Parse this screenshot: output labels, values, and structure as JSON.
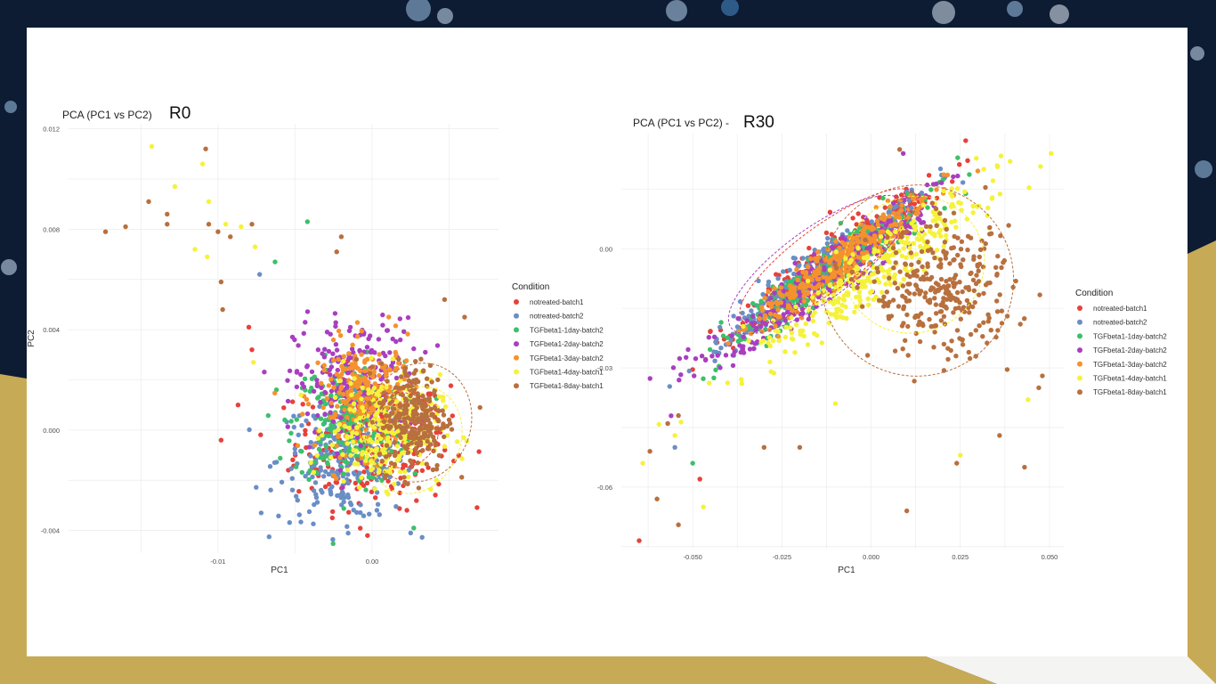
{
  "slide": {
    "background_colors": {
      "dark": "#0d1b33",
      "gold": "#c7aa55",
      "white": "#ffffff"
    }
  },
  "legend": {
    "title": "Condition",
    "items": [
      {
        "label": "notreated-batch1",
        "color": "#e8403a"
      },
      {
        "label": "notreated-batch2",
        "color": "#6a8ec6"
      },
      {
        "label": "TGFbeta1-1day-batch2",
        "color": "#3cc06a"
      },
      {
        "label": "TGFbeta1-2day-batch2",
        "color": "#a83fc0"
      },
      {
        "label": "TGFbeta1-3day-batch2",
        "color": "#f5922e"
      },
      {
        "label": "TGFbeta1-4day-batch1",
        "color": "#f5f23a"
      },
      {
        "label": "TGFbeta1-8day-batch1",
        "color": "#b8703e"
      }
    ]
  },
  "chart_data": [
    {
      "type": "scatter",
      "title": "PCA (PC1 vs PC2)",
      "label": "R0",
      "xlabel": "PC1",
      "ylabel": "PC2",
      "xlim": [
        -0.0197,
        0.0082
      ],
      "ylim": [
        -0.0049,
        0.0122
      ],
      "xticks": [
        -0.01,
        0.0
      ],
      "xtick_labels": [
        "-0.01",
        "0.00"
      ],
      "yticks": [
        -0.004,
        0.0,
        0.004,
        0.008,
        0.012
      ],
      "ytick_labels": [
        "-0.004",
        "0.000",
        "0.004",
        "0.008",
        "0.012"
      ],
      "grid": true,
      "legend_position": "right",
      "clusters": [
        {
          "series": "notreated-batch1",
          "cx": 0.0,
          "cy": -0.0005,
          "sx": 0.0025,
          "sy": 0.0013
        },
        {
          "series": "notreated-batch2",
          "cx": -0.0017,
          "cy": -0.0012,
          "sx": 0.0022,
          "sy": 0.0012
        },
        {
          "series": "TGFbeta1-1day-batch2",
          "cx": -0.0015,
          "cy": 0.0003,
          "sx": 0.0018,
          "sy": 0.0012
        },
        {
          "series": "TGFbeta1-2day-batch2",
          "cx": -0.001,
          "cy": 0.0018,
          "sx": 0.002,
          "sy": 0.0013
        },
        {
          "series": "TGFbeta1-3day-batch2",
          "cx": -0.0003,
          "cy": 0.0013,
          "sx": 0.0016,
          "sy": 0.0011
        },
        {
          "series": "TGFbeta1-4day-batch1",
          "cx": 0.0008,
          "cy": 0.0,
          "sx": 0.0018,
          "sy": 0.0011
        },
        {
          "series": "TGFbeta1-8day-batch1",
          "cx": 0.0027,
          "cy": 0.0005,
          "sx": 0.0011,
          "sy": 0.0011
        }
      ],
      "outliers": [
        {
          "series": "TGFbeta1-8day-batch1",
          "x": -0.0173,
          "y": 0.0079
        },
        {
          "series": "TGFbeta1-8day-batch1",
          "x": -0.016,
          "y": 0.0081
        },
        {
          "series": "TGFbeta1-4day-batch1",
          "x": -0.0143,
          "y": 0.0113
        },
        {
          "series": "TGFbeta1-8day-batch1",
          "x": -0.0145,
          "y": 0.0091
        },
        {
          "series": "TGFbeta1-8day-batch1",
          "x": -0.0133,
          "y": 0.0086
        },
        {
          "series": "TGFbeta1-8day-batch1",
          "x": -0.0133,
          "y": 0.0082
        },
        {
          "series": "TGFbeta1-4day-batch1",
          "x": -0.0128,
          "y": 0.0097
        },
        {
          "series": "TGFbeta1-8day-batch1",
          "x": -0.0108,
          "y": 0.0112
        },
        {
          "series": "TGFbeta1-4day-batch1",
          "x": -0.011,
          "y": 0.0106
        },
        {
          "series": "TGFbeta1-4day-batch1",
          "x": -0.0106,
          "y": 0.0091
        },
        {
          "series": "TGFbeta1-8day-batch1",
          "x": -0.0106,
          "y": 0.0082
        },
        {
          "series": "TGFbeta1-4day-batch1",
          "x": -0.0115,
          "y": 0.0072
        },
        {
          "series": "TGFbeta1-4day-batch1",
          "x": -0.0107,
          "y": 0.0069
        },
        {
          "series": "TGFbeta1-8day-batch1",
          "x": -0.01,
          "y": 0.0079
        },
        {
          "series": "TGFbeta1-4day-batch1",
          "x": -0.0095,
          "y": 0.0082
        },
        {
          "series": "TGFbeta1-8day-batch1",
          "x": -0.0098,
          "y": 0.0059
        },
        {
          "series": "TGFbeta1-8day-batch1",
          "x": -0.0097,
          "y": 0.0048
        },
        {
          "series": "notreated-batch1",
          "x": -0.0098,
          "y": -0.0004
        },
        {
          "series": "TGFbeta1-8day-batch1",
          "x": -0.0092,
          "y": 0.0077
        },
        {
          "series": "TGFbeta1-4day-batch1",
          "x": -0.0085,
          "y": 0.0081
        },
        {
          "series": "TGFbeta1-8day-batch1",
          "x": -0.0078,
          "y": 0.0082
        },
        {
          "series": "TGFbeta1-4day-batch1",
          "x": -0.0076,
          "y": 0.0073
        },
        {
          "series": "notreated-batch2",
          "x": -0.0073,
          "y": 0.0062
        },
        {
          "series": "TGFbeta1-1day-batch2",
          "x": -0.0063,
          "y": 0.0067
        },
        {
          "series": "TGFbeta1-1day-batch2",
          "x": -0.0042,
          "y": 0.0083
        },
        {
          "series": "notreated-batch1",
          "x": -0.008,
          "y": 0.0041
        },
        {
          "series": "notreated-batch1",
          "x": -0.0078,
          "y": 0.0032
        },
        {
          "series": "TGFbeta1-4day-batch1",
          "x": -0.0077,
          "y": 0.0027
        },
        {
          "series": "notreated-batch2",
          "x": -0.0072,
          "y": -0.0033
        },
        {
          "series": "TGFbeta1-8day-batch1",
          "x": 0.007,
          "y": 0.0009
        },
        {
          "series": "TGFbeta1-8day-batch1",
          "x": 0.006,
          "y": 0.0045
        },
        {
          "series": "TGFbeta1-8day-batch1",
          "x": 0.0047,
          "y": 0.0052
        },
        {
          "series": "notreated-batch2",
          "x": 0.0025,
          "y": -0.0041
        },
        {
          "series": "TGFbeta1-1day-batch2",
          "x": 0.0027,
          "y": -0.0039
        },
        {
          "series": "notreated-batch1",
          "x": -0.0003,
          "y": -0.0042
        },
        {
          "series": "TGFbeta1-8day-batch1",
          "x": -0.002,
          "y": 0.0077
        },
        {
          "series": "TGFbeta1-8day-batch1",
          "x": -0.0023,
          "y": 0.0071
        }
      ],
      "ellipses": [
        {
          "series": "TGFbeta1-8day-batch1",
          "cx": 0.003,
          "cy": 0.0003,
          "rx": 0.0034,
          "ry": 0.0024,
          "angle": -20
        },
        {
          "series": "TGFbeta1-4day-batch1",
          "cx": 0.0028,
          "cy": -0.0004,
          "rx": 0.0029,
          "ry": 0.0022,
          "angle": -25
        },
        {
          "series": "notreated-batch1",
          "cx": 0.0018,
          "cy": 0.0,
          "rx": 0.0025,
          "ry": 0.0015,
          "angle": -10
        }
      ]
    },
    {
      "type": "scatter",
      "title": "PCA (PC1 vs PC2) -",
      "label": "R30",
      "xlabel": "PC1",
      "ylabel": "",
      "xlim": [
        -0.07,
        0.054
      ],
      "ylim": [
        -0.0755,
        0.029
      ],
      "xticks": [
        -0.05,
        -0.025,
        0.0,
        0.025,
        0.05
      ],
      "xtick_labels": [
        "-0.050",
        "-0.025",
        "0.000",
        "0.025",
        "0.050"
      ],
      "yticks": [
        -0.06,
        -0.03,
        0.0
      ],
      "ytick_labels": [
        "-0.06",
        "-0.03",
        "0.00"
      ],
      "grid": true,
      "legend_position": "right",
      "clusters": [
        {
          "series": "notreated-batch1",
          "cx": -0.01,
          "cy": -0.002,
          "sx": 0.009,
          "sy": 0.005
        },
        {
          "series": "notreated-batch2",
          "cx": -0.015,
          "cy": -0.006,
          "sx": 0.009,
          "sy": 0.005
        },
        {
          "series": "TGFbeta1-1day-batch2",
          "cx": -0.012,
          "cy": -0.006,
          "sx": 0.009,
          "sy": 0.005
        },
        {
          "series": "TGFbeta1-2day-batch2",
          "cx": -0.014,
          "cy": -0.008,
          "sx": 0.01,
          "sy": 0.006
        },
        {
          "series": "TGFbeta1-3day-batch2",
          "cx": -0.008,
          "cy": -0.003,
          "sx": 0.008,
          "sy": 0.005
        },
        {
          "series": "TGFbeta1-4day-batch1",
          "cx": 0.002,
          "cy": -0.005,
          "sx": 0.011,
          "sy": 0.007
        },
        {
          "series": "TGFbeta1-8day-batch1",
          "cx": 0.02,
          "cy": -0.011,
          "sx": 0.01,
          "sy": 0.008
        }
      ],
      "outliers": [
        {
          "series": "notreated-batch1",
          "x": -0.065,
          "y": -0.0735
        },
        {
          "series": "TGFbeta1-8day-batch1",
          "x": -0.06,
          "y": -0.063
        },
        {
          "series": "TGFbeta1-8day-batch1",
          "x": -0.054,
          "y": -0.0695
        },
        {
          "series": "TGFbeta1-4day-batch1",
          "x": -0.064,
          "y": -0.054
        },
        {
          "series": "TGFbeta1-8day-batch1",
          "x": -0.062,
          "y": -0.051
        },
        {
          "series": "notreated-batch2",
          "x": -0.055,
          "y": -0.05
        },
        {
          "series": "TGFbeta1-1day-batch2",
          "x": -0.05,
          "y": -0.054
        },
        {
          "series": "notreated-batch1",
          "x": -0.048,
          "y": -0.058
        },
        {
          "series": "TGFbeta1-4day-batch1",
          "x": -0.047,
          "y": -0.065
        },
        {
          "series": "TGFbeta1-8day-batch1",
          "x": -0.057,
          "y": -0.044
        },
        {
          "series": "TGFbeta1-8day-batch1",
          "x": -0.054,
          "y": -0.042
        },
        {
          "series": "TGFbeta1-4day-batch1",
          "x": -0.055,
          "y": -0.047
        },
        {
          "series": "TGFbeta1-8day-batch1",
          "x": -0.03,
          "y": -0.05
        },
        {
          "series": "TGFbeta1-8day-batch1",
          "x": -0.02,
          "y": -0.05
        },
        {
          "series": "TGFbeta1-8day-batch1",
          "x": 0.01,
          "y": -0.066
        },
        {
          "series": "TGFbeta1-8day-batch1",
          "x": 0.043,
          "y": -0.055
        },
        {
          "series": "TGFbeta1-8day-batch1",
          "x": 0.024,
          "y": -0.054
        },
        {
          "series": "TGFbeta1-4day-batch1",
          "x": 0.025,
          "y": -0.052
        },
        {
          "series": "TGFbeta1-8day-batch1",
          "x": 0.048,
          "y": -0.032
        },
        {
          "series": "TGFbeta1-8day-batch1",
          "x": 0.047,
          "y": -0.035
        },
        {
          "series": "TGFbeta1-4day-batch1",
          "x": 0.044,
          "y": -0.038
        },
        {
          "series": "TGFbeta1-8day-batch1",
          "x": 0.036,
          "y": -0.047
        },
        {
          "series": "TGFbeta1-4day-batch1",
          "x": -0.01,
          "y": -0.039
        },
        {
          "series": "TGFbeta1-8day-batch1",
          "x": 0.008,
          "y": 0.025
        },
        {
          "series": "TGFbeta1-2day-batch2",
          "x": 0.009,
          "y": 0.024
        }
      ],
      "ellipses": [
        {
          "series": "TGFbeta1-8day-batch1",
          "cx": 0.013,
          "cy": -0.008,
          "rx": 0.027,
          "ry": 0.024,
          "angle": 30
        },
        {
          "series": "TGFbeta1-4day-batch1",
          "cx": 0.012,
          "cy": -0.004,
          "rx": 0.02,
          "ry": 0.017,
          "angle": 30
        },
        {
          "series": "notreated-batch1",
          "cx": -0.012,
          "cy": -0.002,
          "rx": 0.03,
          "ry": 0.008,
          "angle": 36
        },
        {
          "series": "TGFbeta1-2day-batch2",
          "cx": -0.015,
          "cy": -0.004,
          "rx": 0.03,
          "ry": 0.009,
          "angle": 36
        }
      ]
    }
  ]
}
